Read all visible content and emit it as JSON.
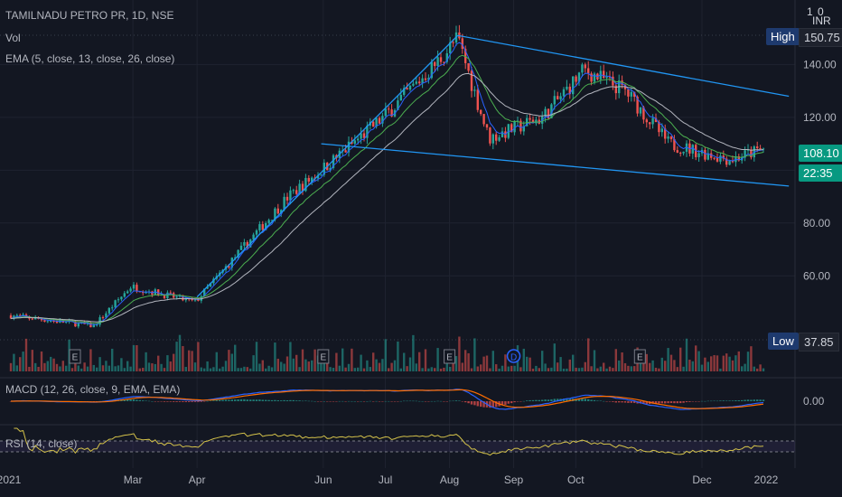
{
  "header": {
    "symbol_line": "TAMILNADU PETRO PR, 1D, NSE",
    "vol_label": "Vol",
    "ema_label": "EMA (5, close, 13, close, 26, close)",
    "macd_label": "MACD (12, 26, close, 9, EMA, EMA)",
    "rsi_label": "RSI (14, close)"
  },
  "price_scale": {
    "currency": "INR",
    "ticks": [
      "140.00",
      "120.00",
      "80.00",
      "60.00"
    ],
    "macd_tick": "0.00",
    "high_label": "High",
    "high_value": "150.75",
    "low_label": "Low",
    "low_value": "37.85",
    "last_price": "108.10",
    "countdown": "22:35",
    "top_digits": "1",
    "top_zero": "0"
  },
  "time_axis": [
    "2021",
    "Mar",
    "Apr",
    "Jun",
    "Jul",
    "Aug",
    "Sep",
    "Oct",
    "Dec",
    "2022"
  ],
  "events": [
    {
      "label": "E",
      "date": "2021-02-01"
    },
    {
      "label": "E",
      "date": "2021-06-01"
    },
    {
      "label": "E",
      "date": "2021-08-01"
    },
    {
      "label": "D",
      "date": "2021-09-01"
    },
    {
      "label": "E",
      "date": "2021-11-01"
    }
  ],
  "colors": {
    "up": "#26a69a",
    "down": "#ef5350",
    "ema_fast": "#2962ff",
    "ema_mid": "#4caf50",
    "ema_slow": "#b2b5be",
    "trendline": "#2196f3",
    "macd_line": "#2962ff",
    "signal_line": "#ff6d00",
    "rsi_line": "#d4c24a",
    "last_price_bg": "#089981",
    "badge_bg": "#1e3a6e"
  },
  "chart_data": {
    "type": "candlestick",
    "symbol": "TAMILNADU PETRO PR",
    "interval": "1D",
    "exchange": "NSE",
    "y_range": [
      35,
      160
    ],
    "price_path": [
      {
        "date": "2021-01-01",
        "close": 45
      },
      {
        "date": "2021-02-10",
        "close": 41
      },
      {
        "date": "2021-02-28",
        "close": 56
      },
      {
        "date": "2021-03-31",
        "close": 50
      },
      {
        "date": "2021-05-15",
        "close": 90
      },
      {
        "date": "2021-05-31",
        "close": 100
      },
      {
        "date": "2021-06-30",
        "close": 120
      },
      {
        "date": "2021-07-25",
        "close": 140
      },
      {
        "date": "2021-08-05",
        "close": 150
      },
      {
        "date": "2021-08-20",
        "close": 112
      },
      {
        "date": "2021-09-15",
        "close": 120
      },
      {
        "date": "2021-10-05",
        "close": 138
      },
      {
        "date": "2021-10-25",
        "close": 130
      },
      {
        "date": "2021-11-15",
        "close": 110
      },
      {
        "date": "2021-12-15",
        "close": 104
      },
      {
        "date": "2021-12-31",
        "close": 108.1
      }
    ],
    "high": 150.75,
    "low": 37.85,
    "last": 108.1,
    "trendlines": [
      {
        "from": {
          "date": "2021-05-31",
          "price": 110
        },
        "to": {
          "date": "2022-01-12",
          "price": 94
        }
      },
      {
        "from": {
          "date": "2021-08-05",
          "price": 151
        },
        "to": {
          "date": "2022-01-12",
          "price": 128
        }
      },
      {
        "from": {
          "date": "2021-04-01",
          "price": 52
        },
        "to": {
          "date": "2021-08-05",
          "price": 151
        }
      }
    ]
  }
}
